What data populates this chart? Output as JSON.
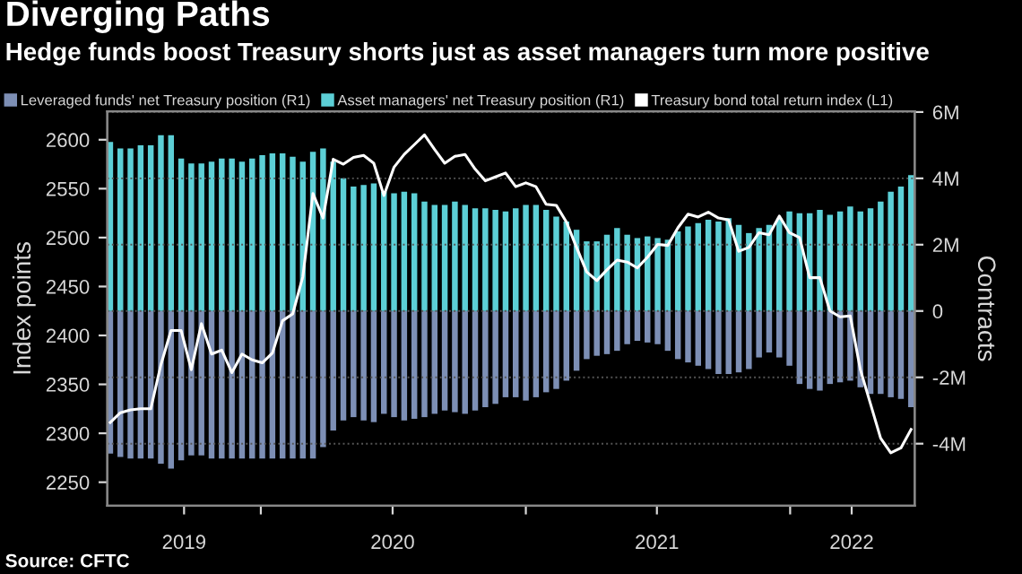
{
  "chart_data": {
    "type": "bar",
    "title": "Diverging Paths",
    "subtitle": "Hedge funds boost Treasury shorts just as asset managers turn more positive",
    "ylabel": "Index points",
    "y2label": "Contracts",
    "annotations": [
      "Source: CFTC"
    ],
    "x": [
      "2019-06-07",
      "2019-06-21",
      "2019-07-05",
      "2019-07-19",
      "2019-08-02",
      "2019-08-16",
      "2019-08-30",
      "2019-09-13",
      "2019-09-27",
      "2019-10-11",
      "2019-10-25",
      "2019-11-08",
      "2019-11-22",
      "2019-12-06",
      "2019-12-20",
      "2020-01-03",
      "2020-01-17",
      "2020-01-31",
      "2020-02-14",
      "2020-02-28",
      "2020-03-13",
      "2020-03-27",
      "2020-04-10",
      "2020-04-24",
      "2020-05-08",
      "2020-05-22",
      "2020-06-05",
      "2020-06-19",
      "2020-07-03",
      "2020-07-17",
      "2020-07-31",
      "2020-08-14",
      "2020-08-28",
      "2020-09-11",
      "2020-09-25",
      "2020-10-09",
      "2020-10-23",
      "2020-11-06",
      "2020-11-20",
      "2020-12-04",
      "2020-12-18",
      "2021-01-01",
      "2021-01-15",
      "2021-01-29",
      "2021-02-12",
      "2021-02-26",
      "2021-03-12",
      "2021-03-26",
      "2021-04-09",
      "2021-04-23",
      "2021-05-07",
      "2021-05-21",
      "2021-06-04",
      "2021-06-18",
      "2021-07-02",
      "2021-07-16",
      "2021-07-30",
      "2021-08-13",
      "2021-08-27",
      "2021-09-10",
      "2021-09-24",
      "2021-10-08",
      "2021-10-22",
      "2021-11-05",
      "2021-11-19",
      "2021-12-03",
      "2021-12-17",
      "2021-12-31",
      "2022-01-14",
      "2022-01-28",
      "2022-02-11",
      "2022-02-25",
      "2022-03-11",
      "2022-03-25",
      "2022-04-08",
      "2022-04-22",
      "2022-05-06",
      "2022-05-20",
      "2022-06-03",
      "2022-06-17"
    ],
    "series": [
      {
        "name": "Leveraged funds' net Treasury position (R1)",
        "axis": "y2",
        "color": "#7d8fb5",
        "values": [
          -4.3,
          -4.4,
          -4.45,
          -4.45,
          -4.45,
          -4.6,
          -4.75,
          -4.5,
          -4.35,
          -4.35,
          -4.45,
          -4.45,
          -4.45,
          -4.45,
          -4.45,
          -4.45,
          -4.45,
          -4.45,
          -4.45,
          -4.45,
          -4.45,
          -4.1,
          -3.6,
          -3.3,
          -3.2,
          -3.3,
          -3.35,
          -3.1,
          -3.2,
          -3.3,
          -3.25,
          -3.2,
          -3.1,
          -3.0,
          -3.05,
          -3.1,
          -3.0,
          -2.9,
          -2.8,
          -2.6,
          -2.6,
          -2.7,
          -2.6,
          -2.45,
          -2.35,
          -2.1,
          -1.8,
          -1.45,
          -1.35,
          -1.3,
          -1.2,
          -1.0,
          -0.9,
          -0.95,
          -1.0,
          -1.2,
          -1.45,
          -1.55,
          -1.65,
          -1.75,
          -1.9,
          -1.9,
          -1.85,
          -1.75,
          -1.4,
          -1.25,
          -1.4,
          -1.65,
          -2.2,
          -2.35,
          -2.4,
          -2.2,
          -2.15,
          -2.1,
          -2.3,
          -2.5,
          -2.5,
          -2.6,
          -2.65,
          -2.9
        ]
      },
      {
        "name": "Asset managers' net Treasury position (R1)",
        "axis": "y2",
        "color": "#5ccfd6",
        "values": [
          5.1,
          4.9,
          4.9,
          5.0,
          5.0,
          5.3,
          5.3,
          4.6,
          4.45,
          4.45,
          4.5,
          4.6,
          4.6,
          4.5,
          4.6,
          4.7,
          4.75,
          4.75,
          4.65,
          4.5,
          4.8,
          4.9,
          4.5,
          4.0,
          3.75,
          3.8,
          3.85,
          3.6,
          3.55,
          3.6,
          3.55,
          3.3,
          3.2,
          3.2,
          3.3,
          3.2,
          3.1,
          3.1,
          3.05,
          3.0,
          3.1,
          3.2,
          3.2,
          3.05,
          2.85,
          2.7,
          2.45,
          2.1,
          2.1,
          2.3,
          2.5,
          2.3,
          2.2,
          2.25,
          2.2,
          2.15,
          2.4,
          2.55,
          2.65,
          2.75,
          2.7,
          2.8,
          2.6,
          2.35,
          2.5,
          2.6,
          2.8,
          3.0,
          2.95,
          2.95,
          3.05,
          2.9,
          3.0,
          3.15,
          3.0,
          3.1,
          3.3,
          3.6,
          3.75,
          4.1
        ]
      },
      {
        "name": "Treasury bond total return index (L1)",
        "type": "line",
        "color": "#ffffff",
        "values": [
          2311,
          2321,
          2324,
          2325,
          2325,
          2370,
          2405,
          2405,
          2365,
          2412,
          2381,
          2385,
          2362,
          2381,
          2375,
          2372,
          2382,
          2415,
          2422,
          2460,
          2545,
          2520,
          2580,
          2575,
          2582,
          2584,
          2576,
          2543,
          2572,
          2585,
          2595,
          2605,
          2590,
          2576,
          2583,
          2585,
          2570,
          2558,
          2562,
          2566,
          2552,
          2556,
          2552,
          2534,
          2533,
          2516,
          2490,
          2465,
          2456,
          2467,
          2477,
          2475,
          2469,
          2480,
          2493,
          2492,
          2510,
          2524,
          2521,
          2526,
          2520,
          2518,
          2486,
          2490,
          2505,
          2503,
          2522,
          2505,
          2500,
          2459,
          2459,
          2425,
          2419,
          2420,
          2365,
          2330,
          2295,
          2280,
          2285,
          2304
        ]
      }
    ],
    "xlim": [
      "2019-06-03",
      "2022-06-22"
    ],
    "xticks": [
      {
        "value": "2019-09-17",
        "label": "2019"
      },
      {
        "value": "2020-01-01",
        "label": null
      },
      {
        "value": "2020-07-01",
        "label": "2020"
      },
      {
        "value": "2021-01-01",
        "label": null
      },
      {
        "value": "2021-07-01",
        "label": "2021"
      },
      {
        "value": "2022-01-01",
        "label": null
      },
      {
        "value": "2022-03-27",
        "label": "2022"
      }
    ],
    "ylim": [
      2226,
      2629
    ],
    "yticks": [
      2250,
      2300,
      2350,
      2400,
      2450,
      2500,
      2550,
      2600
    ],
    "y2lim": [
      -5.87,
      6.02
    ],
    "y2ticks": [
      {
        "value": -4,
        "label": "-4M"
      },
      {
        "value": -2,
        "label": "-2M"
      },
      0,
      {
        "value": 2,
        "label": "2M"
      },
      {
        "value": 4,
        "label": "4M"
      },
      {
        "value": 6,
        "label": "6M"
      }
    ],
    "stacked": true,
    "grid": "y",
    "legend": "top",
    "marker": "none",
    "line_style": "solid"
  }
}
